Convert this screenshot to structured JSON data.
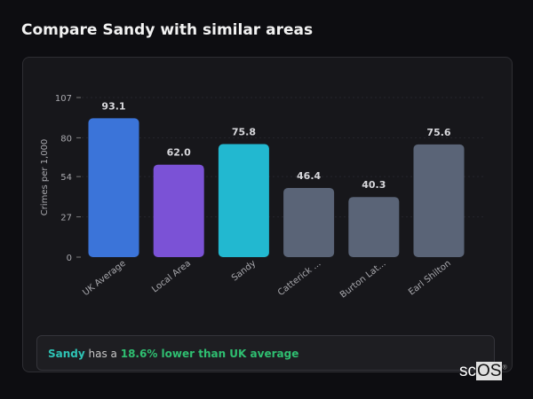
{
  "page_title": "Compare Sandy with similar areas",
  "chart_data": {
    "type": "bar",
    "title": "",
    "xlabel": "",
    "ylabel": "Crimes per 1,000",
    "ylim": [
      0,
      107
    ],
    "yticks": [
      0,
      27,
      54,
      80,
      107
    ],
    "grid": true,
    "categories": [
      "UK Average",
      "Local Area",
      "Sandy",
      "Catterick ...",
      "Burton Lat...",
      "Earl Shilton"
    ],
    "values": [
      93.1,
      62.0,
      75.8,
      46.4,
      40.3,
      75.6
    ],
    "value_labels": [
      "93.1",
      "62.0",
      "75.8",
      "46.4",
      "40.3",
      "75.6"
    ],
    "colors": [
      "#3b74d9",
      "#7b52d6",
      "#22b8d0",
      "#5a6477",
      "#5a6477",
      "#5a6477"
    ]
  },
  "summary": {
    "area": "Sandy",
    "middle": " has a ",
    "comparison": "18.6% lower than UK average"
  },
  "logo": {
    "text_a": "sc",
    "text_b": "OS",
    "mark": "®"
  }
}
